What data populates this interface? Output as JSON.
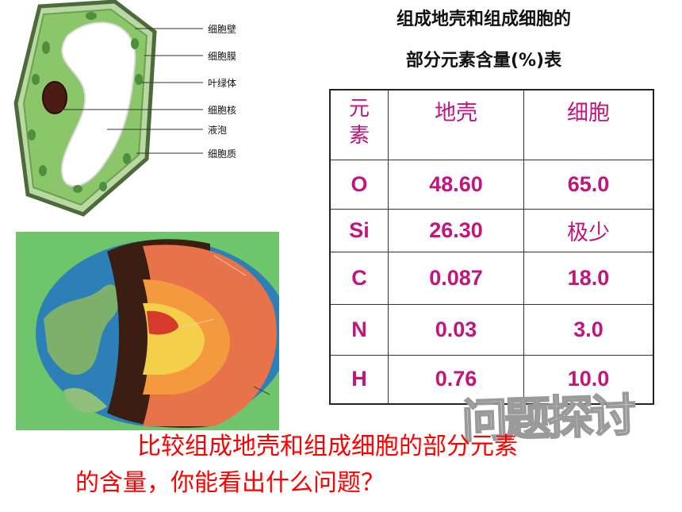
{
  "cell_diagram": {
    "labels": [
      "细胞壁",
      "细胞膜",
      "叶绿体",
      "细胞核",
      "液泡",
      "细胞质"
    ]
  },
  "title": {
    "line1": "组成地壳和组成细胞的",
    "line2": "部分元素含量(%)表"
  },
  "table": {
    "headers": [
      "元素",
      "地壳",
      "细胞"
    ],
    "rows": [
      {
        "element": "O",
        "crust": "48.60",
        "cell": "65.0"
      },
      {
        "element": "Si",
        "crust": "26.30",
        "cell": "极少"
      },
      {
        "element": "C",
        "crust": "0.087",
        "cell": "18.0"
      },
      {
        "element": "N",
        "crust": "0.03",
        "cell": "3.0"
      },
      {
        "element": "H",
        "crust": "0.76",
        "cell": "10.0"
      }
    ]
  },
  "watermark": "问题探讨",
  "question": {
    "line1": "比较组成地壳和组成细胞的部分元素",
    "line2": "的含量，你能看出什么问题？"
  }
}
